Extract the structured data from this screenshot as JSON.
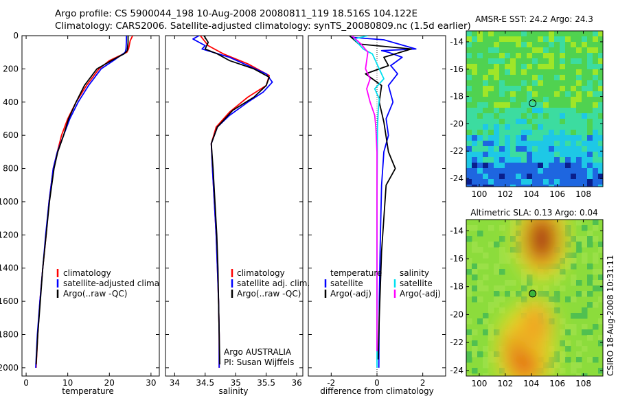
{
  "header": {
    "line1": "Argo profile: CS 5900044_198 10-Aug-2008 20080811_119 18.516S 104.122E",
    "line2": "Climatology: CARS2006. Satellite-adjusted climatology: synTS_20080809.nc (1.5d earlier)"
  },
  "colors": {
    "red": "#ff0000",
    "blue": "#0000ff",
    "black": "#000000",
    "cyan": "#00e0f0",
    "magenta": "#ff00ff"
  },
  "chart_data": [
    {
      "type": "line",
      "id": "temperature",
      "xlabel": "temperature",
      "ylabel": "",
      "xlim": [
        -1,
        32
      ],
      "ylim": [
        2050,
        0
      ],
      "xticks": [
        0,
        10,
        20,
        30
      ],
      "yticks": [
        0,
        200,
        400,
        600,
        800,
        1000,
        1200,
        1400,
        1600,
        1800,
        2000
      ],
      "legend": {
        "position": "lower-left",
        "entries": [
          "climatology",
          "satellite-adjusted climatology",
          "Argo(..raw -QC)"
        ]
      },
      "series": [
        {
          "name": "climatology",
          "color": "red",
          "points": [
            [
              25.6,
              0
            ],
            [
              25,
              30
            ],
            [
              24.6,
              80
            ],
            [
              24.2,
              100
            ],
            [
              20,
              150
            ],
            [
              17.5,
              200
            ],
            [
              14.5,
              300
            ],
            [
              12,
              400
            ],
            [
              10,
              500
            ],
            [
              8.5,
              600
            ],
            [
              7.5,
              700
            ],
            [
              6.5,
              800
            ],
            [
              5.5,
              1000
            ],
            [
              4.8,
              1200
            ],
            [
              4,
              1400
            ],
            [
              3.3,
              1600
            ],
            [
              2.8,
              1800
            ],
            [
              2.4,
              2000
            ]
          ]
        },
        {
          "name": "satellite-adjusted climatology",
          "color": "blue",
          "points": [
            [
              24.1,
              0
            ],
            [
              24.1,
              30
            ],
            [
              24,
              80
            ],
            [
              23.8,
              100
            ],
            [
              21,
              150
            ],
            [
              18,
              200
            ],
            [
              15,
              300
            ],
            [
              12.5,
              400
            ],
            [
              10.5,
              500
            ],
            [
              9,
              600
            ],
            [
              7.5,
              700
            ],
            [
              6.5,
              800
            ],
            [
              5.5,
              1000
            ],
            [
              4.7,
              1200
            ],
            [
              4,
              1400
            ],
            [
              3.3,
              1600
            ],
            [
              2.7,
              1800
            ],
            [
              2.3,
              2000
            ]
          ]
        },
        {
          "name": "Argo(..raw -QC)",
          "color": "black",
          "points": [
            [
              24.5,
              0
            ],
            [
              24.5,
              40
            ],
            [
              24.3,
              90
            ],
            [
              23.5,
              110
            ],
            [
              20.5,
              150
            ],
            [
              17,
              200
            ],
            [
              14,
              300
            ],
            [
              12,
              400
            ],
            [
              10.2,
              500
            ],
            [
              9,
              600
            ],
            [
              7.6,
              700
            ],
            [
              6.7,
              800
            ],
            [
              5.6,
              1000
            ],
            [
              4.8,
              1200
            ],
            [
              4,
              1400
            ],
            [
              3.4,
              1600
            ],
            [
              2.8,
              1800
            ],
            [
              2.4,
              1980
            ]
          ]
        }
      ]
    },
    {
      "type": "line",
      "id": "salinity",
      "xlabel": "salinity",
      "ylabel": "",
      "xlim": [
        33.85,
        36.1
      ],
      "ylim": [
        2050,
        0
      ],
      "xticks": [
        34,
        34.5,
        35,
        35.5,
        36
      ],
      "legend": {
        "position": "lower-center",
        "entries": [
          "climatology",
          "satellite adj. clim.",
          "Argo(..raw -QC)"
        ]
      },
      "annotations": [
        "Argo AUSTRALIA",
        "PI: Susan Wijffels"
      ],
      "series": [
        {
          "name": "climatology",
          "color": "red",
          "points": [
            [
              34.42,
              0
            ],
            [
              34.55,
              60
            ],
            [
              34.8,
              110
            ],
            [
              35.2,
              170
            ],
            [
              35.55,
              240
            ],
            [
              35.5,
              300
            ],
            [
              35.2,
              370
            ],
            [
              34.9,
              460
            ],
            [
              34.68,
              550
            ],
            [
              34.6,
              650
            ],
            [
              34.62,
              800
            ],
            [
              34.65,
              1000
            ],
            [
              34.68,
              1200
            ],
            [
              34.7,
              1400
            ],
            [
              34.72,
              1600
            ],
            [
              34.73,
              1800
            ],
            [
              34.73,
              2000
            ]
          ]
        },
        {
          "name": "satellite adj. clim.",
          "color": "blue",
          "points": [
            [
              34.4,
              0
            ],
            [
              34.3,
              20
            ],
            [
              34.5,
              60
            ],
            [
              34.45,
              80
            ],
            [
              34.9,
              130
            ],
            [
              35.2,
              180
            ],
            [
              35.5,
              230
            ],
            [
              35.6,
              280
            ],
            [
              35.45,
              340
            ],
            [
              35.2,
              400
            ],
            [
              34.9,
              480
            ],
            [
              34.7,
              550
            ],
            [
              34.6,
              650
            ],
            [
              34.62,
              800
            ],
            [
              34.65,
              1000
            ],
            [
              34.68,
              1200
            ],
            [
              34.7,
              1400
            ],
            [
              34.72,
              1600
            ],
            [
              34.73,
              1800
            ],
            [
              34.73,
              2000
            ]
          ]
        },
        {
          "name": "Argo(..raw -QC)",
          "color": "black",
          "points": [
            [
              34.48,
              0
            ],
            [
              34.55,
              40
            ],
            [
              34.5,
              80
            ],
            [
              34.7,
              110
            ],
            [
              34.9,
              150
            ],
            [
              35.3,
              200
            ],
            [
              35.55,
              250
            ],
            [
              35.5,
              300
            ],
            [
              35.3,
              370
            ],
            [
              34.95,
              450
            ],
            [
              34.7,
              550
            ],
            [
              34.6,
              650
            ],
            [
              34.63,
              800
            ],
            [
              34.66,
              1000
            ],
            [
              34.69,
              1200
            ],
            [
              34.71,
              1400
            ],
            [
              34.72,
              1600
            ],
            [
              34.73,
              1800
            ],
            [
              34.74,
              1980
            ]
          ]
        }
      ]
    },
    {
      "type": "line",
      "id": "difference",
      "xlabel": "difference from climatology",
      "ylabel": "",
      "xlim": [
        -3,
        3
      ],
      "ylim": [
        2050,
        0
      ],
      "xticks": [
        -2,
        0,
        2
      ],
      "zero_line": "dotted",
      "legend": {
        "position": "lower-left",
        "columns": [
          [
            "temperature",
            "satellite",
            "Argo(-adj)"
          ],
          [
            "salinity",
            "satellite",
            "Argo(-adj)"
          ]
        ]
      },
      "series": [
        {
          "name": "temperature satellite",
          "color": "blue",
          "points": [
            [
              -1.1,
              10
            ],
            [
              0.3,
              25
            ],
            [
              1.7,
              80
            ],
            [
              0.2,
              90
            ],
            [
              0.5,
              100
            ],
            [
              1.1,
              130
            ],
            [
              0.6,
              180
            ],
            [
              0.9,
              230
            ],
            [
              0.5,
              300
            ],
            [
              0.7,
              400
            ],
            [
              0.4,
              500
            ],
            [
              0.5,
              600
            ],
            [
              0.3,
              700
            ],
            [
              0.2,
              900
            ],
            [
              0.15,
              1200
            ],
            [
              0.1,
              1600
            ],
            [
              0.08,
              2000
            ]
          ]
        },
        {
          "name": "temperature Argo(-adj)",
          "color": "black",
          "points": [
            [
              -1.2,
              0
            ],
            [
              -0.8,
              50
            ],
            [
              1.5,
              80
            ],
            [
              0.3,
              130
            ],
            [
              0.5,
              180
            ],
            [
              -0.5,
              230
            ],
            [
              0.2,
              300
            ],
            [
              0.1,
              400
            ],
            [
              0.3,
              520
            ],
            [
              0.5,
              700
            ],
            [
              0.8,
              800
            ],
            [
              0.4,
              900
            ],
            [
              0.3,
              1100
            ],
            [
              0.2,
              1300
            ],
            [
              0.15,
              1500
            ],
            [
              0.1,
              1700
            ],
            [
              0.05,
              1950
            ]
          ]
        },
        {
          "name": "salinity satellite",
          "color": "cyan",
          "points": [
            [
              -0.4,
              0
            ],
            [
              -1.0,
              20
            ],
            [
              -0.6,
              80
            ],
            [
              -0.2,
              110
            ],
            [
              0.1,
              200
            ],
            [
              0.3,
              260
            ],
            [
              -0.1,
              320
            ],
            [
              0.1,
              380
            ],
            [
              0.05,
              460
            ],
            [
              0.02,
              560
            ],
            [
              0,
              1000
            ],
            [
              0,
              1500
            ],
            [
              0,
              2000
            ]
          ]
        },
        {
          "name": "salinity Argo(-adj)",
          "color": "magenta",
          "points": [
            [
              -1.1,
              0
            ],
            [
              -0.7,
              50
            ],
            [
              -0.4,
              100
            ],
            [
              -0.5,
              200
            ],
            [
              -0.3,
              260
            ],
            [
              -0.45,
              320
            ],
            [
              -0.3,
              400
            ],
            [
              -0.1,
              480
            ],
            [
              -0.05,
              550
            ],
            [
              0,
              700
            ],
            [
              0,
              1200
            ],
            [
              0,
              1900
            ]
          ]
        }
      ]
    },
    {
      "type": "heatmap",
      "id": "sst-map",
      "title": "AMSR-E SST: 24.2 Argo: 24.3",
      "xlim": [
        99,
        109.5
      ],
      "ylim": [
        -24.6,
        -13.2
      ],
      "xticks": [
        100,
        102,
        104,
        106,
        108
      ],
      "yticks": [
        -14,
        -16,
        -18,
        -20,
        -22,
        -24
      ],
      "marker": {
        "lon": 104.1,
        "lat": -18.5
      },
      "colormap": [
        "#0a1f8c",
        "#1e66e0",
        "#1ec8e6",
        "#3cdca0",
        "#50d250",
        "#a0e628"
      ],
      "bands": [
        {
          "lat_top": -13.2,
          "lat_bottom": -18.5,
          "level": 4
        },
        {
          "lat_top": -18.5,
          "lat_bottom": -20.5,
          "level": 3
        },
        {
          "lat_top": -20.5,
          "lat_bottom": -22.5,
          "level": 2
        },
        {
          "lat_top": -22.5,
          "lat_bottom": -24.6,
          "level": 1
        }
      ]
    },
    {
      "type": "heatmap",
      "id": "sla-map",
      "title": "Altimetric SLA: 0.13 Argo: 0.04",
      "xlim": [
        99,
        109.5
      ],
      "ylim": [
        -24.4,
        -13.2
      ],
      "xticks": [
        100,
        102,
        104,
        106,
        108
      ],
      "yticks": [
        -14,
        -16,
        -18,
        -20,
        -22,
        -24
      ],
      "marker": {
        "lon": 104.1,
        "lat": -18.5
      },
      "colormap": [
        "#50c050",
        "#8cdc3c",
        "#e6e628",
        "#f0a020",
        "#e05010",
        "#a01808"
      ],
      "blobs": [
        {
          "lon": 104.8,
          "lat": -14.6,
          "r": 2.2,
          "level": 5
        },
        {
          "lon": 103.5,
          "lat": -22.6,
          "r": 2.4,
          "level": 4
        },
        {
          "lon": 104.3,
          "lat": -20.8,
          "r": 1.6,
          "level": 3
        }
      ]
    }
  ],
  "side_label": "CSIRO 18-Aug-2008 10:31:11"
}
